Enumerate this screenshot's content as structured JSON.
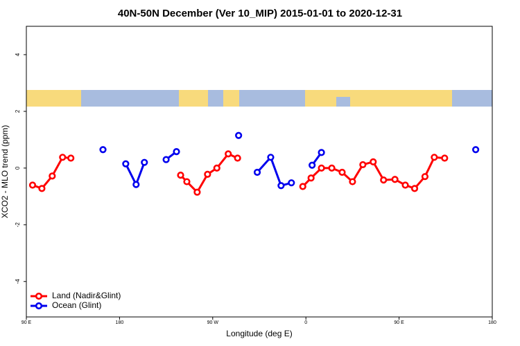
{
  "chart_data": {
    "type": "line",
    "title": "40N-50N December (Ver 10_MIP)   2015-01-01 to 2020-12-31",
    "x_label": "Longitude (deg E)",
    "y_label": "XCO2 - MLO trend (ppm)",
    "xlim": [
      90,
      540
    ],
    "ylim": [
      -5.25,
      5
    ],
    "xticks": [
      {
        "value": 90,
        "label": "90 E"
      },
      180,
      {
        "value": 270,
        "label": "90 W"
      },
      {
        "value": 360,
        "label": "0"
      },
      {
        "value": 450,
        "label": "90 E"
      },
      {
        "value": 540,
        "label": "180"
      }
    ],
    "yticks": [
      -4,
      -2,
      0,
      2,
      4
    ],
    "legend": "bottom-left",
    "series": [
      {
        "name": "Land (Nadir&Glint)",
        "color": "#ff0000",
        "x": [
          96,
          105,
          115,
          125,
          133,
          null,
          239,
          245,
          255,
          265,
          274,
          285,
          294,
          null,
          357,
          365,
          375,
          385,
          395,
          405,
          415,
          425,
          435,
          446,
          456,
          465,
          475,
          484,
          494
        ],
        "values": [
          -0.6,
          -0.72,
          -0.28,
          0.38,
          0.35,
          null,
          -0.25,
          -0.48,
          -0.85,
          -0.22,
          0.0,
          0.5,
          0.35,
          null,
          -0.65,
          -0.35,
          0.0,
          0.0,
          -0.15,
          -0.48,
          0.12,
          0.22,
          -0.42,
          -0.4,
          -0.6,
          -0.72,
          -0.3,
          0.38,
          0.35
        ]
      },
      {
        "name": "Ocean (Glint)",
        "color": "#0000ee",
        "x": [
          164,
          null,
          186,
          196,
          204,
          null,
          225,
          235,
          null,
          295,
          null,
          313,
          326,
          336,
          346,
          null,
          366,
          375,
          null,
          524
        ],
        "values": [
          0.65,
          null,
          0.15,
          -0.58,
          0.2,
          null,
          0.3,
          0.58,
          null,
          1.15,
          null,
          -0.15,
          0.38,
          -0.62,
          -0.52,
          null,
          0.1,
          0.55,
          null,
          0.65
        ]
      }
    ]
  }
}
